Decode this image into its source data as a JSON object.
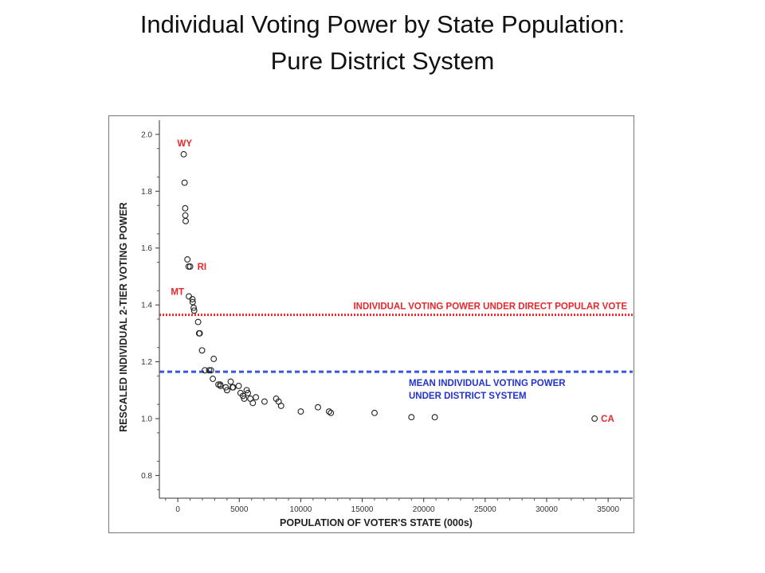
{
  "title": {
    "line1": "Individual Voting Power by State Population:",
    "line2": "Pure District System"
  },
  "chart_data": {
    "type": "scatter",
    "xlabel": "POPULATION OF VOTER'S STATE (000s)",
    "ylabel": "RESCALED INDIVIDUAL 2-TIER VOTING POWER",
    "xlim": [
      -1500,
      37000
    ],
    "ylim": [
      0.72,
      2.05
    ],
    "x_ticks": [
      0,
      5000,
      10000,
      15000,
      20000,
      25000,
      30000,
      35000
    ],
    "x_tick_labels": [
      "0",
      "5000",
      "10000",
      "15000",
      "20000",
      "25000",
      "30000",
      "35000"
    ],
    "y_ticks": [
      0.8,
      1.0,
      1.2,
      1.4,
      1.6,
      1.8,
      2.0
    ],
    "y_tick_labels": [
      "0.8",
      "1.0",
      "1.2",
      "1.4",
      "1.6",
      "1.8",
      "2.0"
    ],
    "grid": false,
    "marker": "open-circle",
    "points": [
      [
        480,
        1.93
      ],
      [
        550,
        1.83
      ],
      [
        600,
        1.74
      ],
      [
        610,
        1.715
      ],
      [
        640,
        1.695
      ],
      [
        780,
        1.56
      ],
      [
        880,
        1.535
      ],
      [
        1000,
        1.535
      ],
      [
        900,
        1.43
      ],
      [
        1190,
        1.42
      ],
      [
        1210,
        1.41
      ],
      [
        1290,
        1.39
      ],
      [
        1330,
        1.38
      ],
      [
        1650,
        1.34
      ],
      [
        1730,
        1.3
      ],
      [
        1780,
        1.3
      ],
      [
        1970,
        1.24
      ],
      [
        2200,
        1.17
      ],
      [
        2550,
        1.17
      ],
      [
        2700,
        1.17
      ],
      [
        2850,
        1.14
      ],
      [
        2920,
        1.21
      ],
      [
        3300,
        1.12
      ],
      [
        3450,
        1.12
      ],
      [
        3470,
        1.115
      ],
      [
        3900,
        1.11
      ],
      [
        4000,
        1.1
      ],
      [
        4300,
        1.13
      ],
      [
        4450,
        1.11
      ],
      [
        4500,
        1.11
      ],
      [
        4950,
        1.115
      ],
      [
        5100,
        1.09
      ],
      [
        5300,
        1.08
      ],
      [
        5400,
        1.07
      ],
      [
        5600,
        1.1
      ],
      [
        5700,
        1.09
      ],
      [
        5900,
        1.07
      ],
      [
        6100,
        1.055
      ],
      [
        6350,
        1.075
      ],
      [
        7050,
        1.06
      ],
      [
        8000,
        1.07
      ],
      [
        8200,
        1.06
      ],
      [
        8400,
        1.045
      ],
      [
        10000,
        1.025
      ],
      [
        11400,
        1.04
      ],
      [
        12300,
        1.025
      ],
      [
        12450,
        1.02
      ],
      [
        16000,
        1.02
      ],
      [
        19000,
        1.005
      ],
      [
        20900,
        1.005
      ],
      [
        33900,
        1.0
      ]
    ],
    "point_labels": [
      {
        "text": "WY",
        "x": 480,
        "y": 1.93,
        "color": "#e8262b"
      },
      {
        "text": "RI",
        "x": 1000,
        "y": 1.535,
        "color": "#e8262b"
      },
      {
        "text": "MT",
        "x": 900,
        "y": 1.43,
        "color": "#e8262b"
      },
      {
        "text": "CA",
        "x": 33900,
        "y": 1.0,
        "color": "#e8262b"
      }
    ],
    "reference_lines": [
      {
        "name": "INDIVIDUAL VOTING POWER UNDER DIRECT POPULAR VOTE",
        "y": 1.365,
        "color": "#e8262b",
        "style": "dotted"
      },
      {
        "name": "MEAN INDIVIDUAL VOTING POWER UNDER DISTRICT SYSTEM",
        "y": 1.165,
        "color": "#3a55e0",
        "style": "dashed"
      }
    ],
    "annotations": [
      {
        "lines": [
          "INDIVIDUAL VOTING POWER UNDER DIRECT POPULAR VOTE"
        ],
        "color": "#e8262b"
      },
      {
        "lines": [
          "MEAN INDIVIDUAL VOTING POWER",
          "UNDER DISTRICT SYSTEM"
        ],
        "color": "#2233cc"
      }
    ]
  }
}
